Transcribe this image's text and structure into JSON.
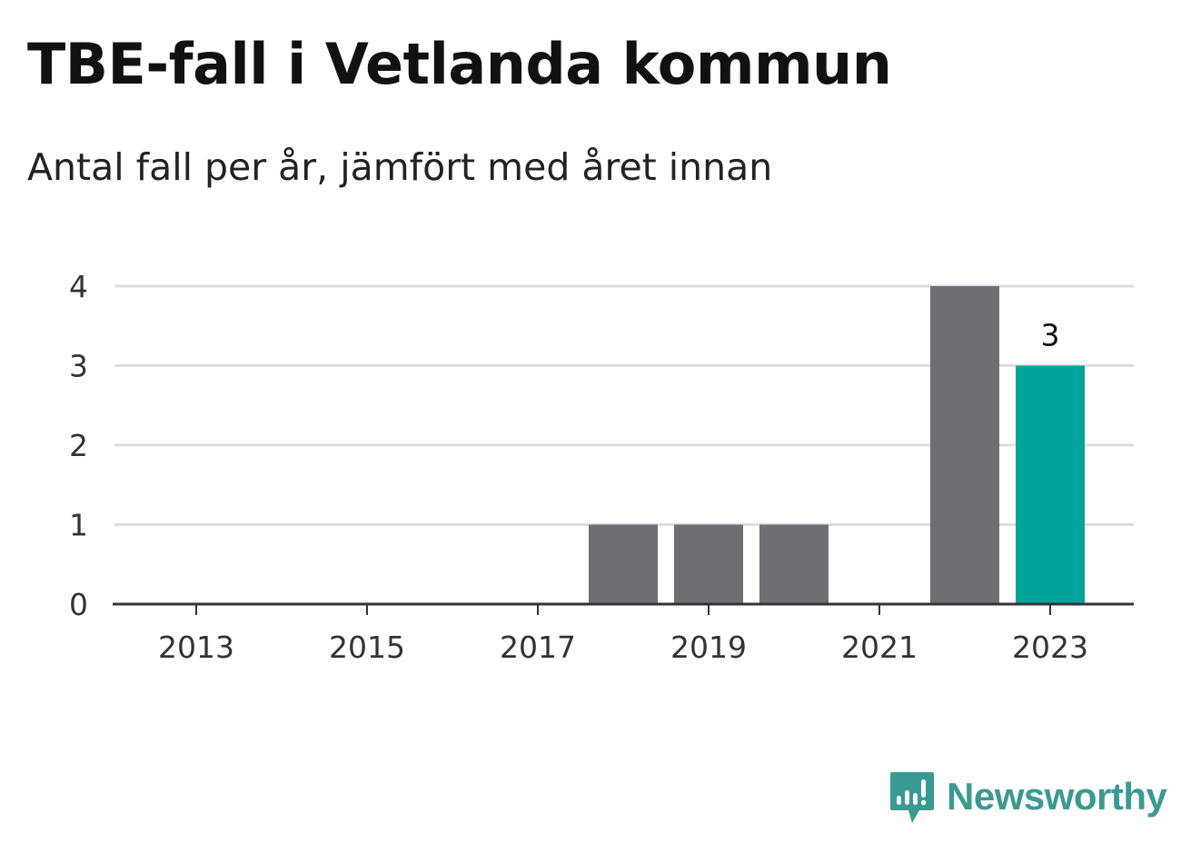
{
  "header": {
    "title": "TBE-fall i Vetlanda kommun",
    "subtitle": "Antal fall per år, jämfört med året innan"
  },
  "chart_data": {
    "type": "bar",
    "categories": [
      2013,
      2014,
      2015,
      2016,
      2017,
      2018,
      2019,
      2020,
      2021,
      2022,
      2023
    ],
    "values": [
      0,
      0,
      0,
      0,
      0,
      1,
      1,
      1,
      0,
      4,
      3
    ],
    "highlight_category": 2023,
    "data_labels": [
      {
        "category": 2023,
        "text": "3"
      }
    ],
    "x_ticks": [
      "2013",
      "2015",
      "2017",
      "2019",
      "2021",
      "2023"
    ],
    "y_ticks": [
      "0",
      "1",
      "2",
      "3",
      "4"
    ],
    "ylim": [
      0,
      4
    ],
    "grid": true,
    "colors": {
      "bar": "#6f6e73",
      "highlight": "#00a49a",
      "grid": "#dddddd",
      "axis": "#333333",
      "tick_text": "#333333"
    }
  },
  "branding": {
    "name": "Newsworthy",
    "color": "#3a9a93",
    "icon": "bar-chart-bubble-icon"
  }
}
